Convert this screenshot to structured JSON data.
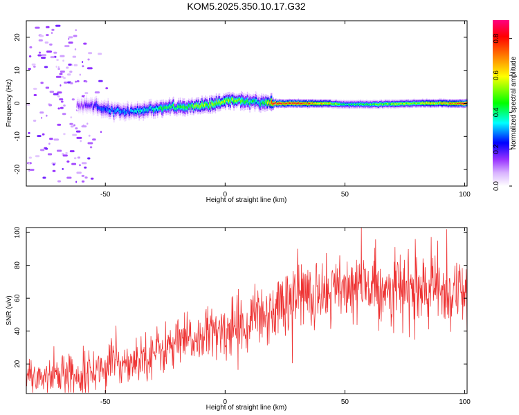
{
  "title": "KOM5.2025.350.10.17.G32",
  "chart_data": [
    {
      "type": "heatmap",
      "xlabel": "Height of straight line (km)",
      "ylabel": "Frequency (Hz)",
      "xlim": [
        -83,
        101
      ],
      "ylim": [
        -25,
        25
      ],
      "xticks": [
        -50,
        0,
        50,
        100
      ],
      "xtick_labels": [
        "-50",
        "0",
        "50",
        "100"
      ],
      "yticks": [
        -20,
        -10,
        0,
        10,
        20
      ],
      "ytick_labels": [
        "-20",
        "-10",
        "0",
        "10",
        "20"
      ],
      "colorbar": {
        "label": "Normalized spectral amplitude",
        "range": [
          0,
          0.9
        ],
        "ticks": [
          0.0,
          0.2,
          0.4,
          0.6,
          0.8
        ],
        "tick_labels": [
          "0.0",
          "0.2",
          "0.4",
          "0.6",
          "0.8"
        ],
        "colors": [
          "#ffffff",
          "#cc99ff",
          "#9933ff",
          "#0000ff",
          "#00ffff",
          "#00ff00",
          "#ffff00",
          "#ff8000",
          "#ff0000",
          "#ff0080"
        ]
      },
      "ridge": {
        "x": [
          -60,
          -56,
          -52,
          -48,
          -44,
          -40,
          -36,
          -32,
          -28,
          -24,
          -20,
          -16,
          -12,
          -8,
          -4,
          0,
          4,
          8,
          12,
          16,
          20,
          30,
          40,
          50,
          60,
          70,
          80,
          90,
          101
        ],
        "freq": [
          -0.5,
          -0.8,
          -1.5,
          -2.0,
          -2.3,
          -2.5,
          -2.2,
          -1.8,
          -1.5,
          -1.3,
          -1.2,
          -1.0,
          -0.8,
          -0.5,
          0.0,
          0.8,
          0.8,
          0.6,
          0.4,
          0.3,
          0.0,
          0.0,
          0.0,
          -0.3,
          -0.3,
          -0.2,
          0.0,
          0.0,
          0.0
        ],
        "amplitude": [
          0.15,
          0.2,
          0.25,
          0.3,
          0.3,
          0.3,
          0.35,
          0.35,
          0.4,
          0.45,
          0.45,
          0.45,
          0.5,
          0.5,
          0.5,
          0.55,
          0.5,
          0.45,
          0.4,
          0.4,
          0.8,
          0.75,
          0.65,
          0.4,
          0.45,
          0.5,
          0.55,
          0.6,
          0.8
        ]
      }
    },
    {
      "type": "line",
      "xlabel": "Height of straight line (km)",
      "ylabel": "SNR (v/v)",
      "xlim": [
        -83,
        101
      ],
      "ylim": [
        2,
        103
      ],
      "xticks": [
        -50,
        0,
        50,
        100
      ],
      "xtick_labels": [
        "-50",
        "0",
        "50",
        "100"
      ],
      "yticks": [
        20,
        40,
        60,
        80,
        100
      ],
      "ytick_labels": [
        "20",
        "40",
        "60",
        "80",
        "100"
      ],
      "series": [
        {
          "color": "#ee3333",
          "trend": {
            "x": [
              -83,
              -70,
              -60,
              -50,
              -40,
              -30,
              -20,
              -10,
              0,
              10,
              20,
              30,
              40,
              50,
              60,
              70,
              80,
              90,
              101
            ],
            "y": [
              12,
              13,
              14,
              18,
              22,
              27,
              32,
              36,
              40,
              46,
              53,
              62,
              65,
              66,
              67,
              66,
              64,
              65,
              63
            ]
          }
        }
      ]
    }
  ]
}
